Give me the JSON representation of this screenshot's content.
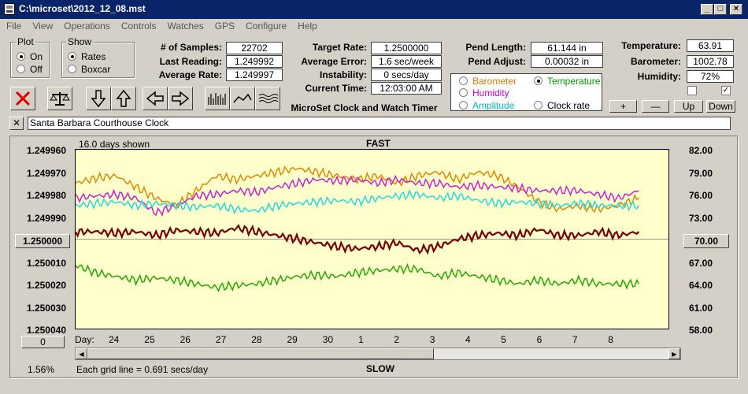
{
  "window": {
    "title": "C:\\microset\\2012_12_08.mst"
  },
  "menu": [
    "File",
    "View",
    "Operations",
    "Controls",
    "Watches",
    "GPS",
    "Configure",
    "Help"
  ],
  "plot_group": {
    "label": "Plot",
    "options": [
      "On",
      "Off"
    ],
    "selected": "On"
  },
  "show_group": {
    "label": "Show",
    "options": [
      "Rates",
      "Boxcar"
    ],
    "selected": "Rates"
  },
  "stats": {
    "samples_label": "# of Samples:",
    "samples_value": "22702",
    "last_label": "Last Reading:",
    "last_value": "1.249992",
    "avg_rate_label": "Average Rate:",
    "avg_rate_value": "1.249997",
    "target_label": "Target Rate:",
    "target_value": "1.2500000",
    "avg_err_label": "Average Error:",
    "avg_err_value": "1.6 sec/week",
    "instab_label": "Instability:",
    "instab_value": "0 secs/day",
    "time_label": "Current Time:",
    "time_value": "12:03:00 AM",
    "app_name": "MicroSet Clock and Watch Timer"
  },
  "pendulum": {
    "length_label": "Pend Length:",
    "length_value": "61.144 in",
    "adjust_label": "Pend Adjust:",
    "adjust_value": "0.00032 in"
  },
  "environment": {
    "temp_label": "Temperature:",
    "temp_value": "63.91",
    "baro_label": "Barometer:",
    "baro_value": "1002.78",
    "hum_label": "Humidity:",
    "hum_value": "72%",
    "chk1": false,
    "chk2": true
  },
  "series_select": {
    "items": [
      {
        "label": "Barometer",
        "color": "#e07800",
        "selected": false
      },
      {
        "label": "Temperature",
        "color": "#009900",
        "selected": true
      },
      {
        "label": "Humidity",
        "color": "#cc00cc",
        "selected": false
      },
      {
        "label": "Clock rate",
        "color": "#000000",
        "selected": false
      },
      {
        "label": "Amplitude",
        "color": "#00bbcc",
        "selected": false
      }
    ]
  },
  "scale_buttons": {
    "plus": "+",
    "minus": "—",
    "up": "Up",
    "down": "Down"
  },
  "watch": {
    "close": "✕",
    "name": "Santa Barbara Courthouse Clock"
  },
  "plot": {
    "days_shown": "16.0 days shown",
    "fast": "FAST",
    "slow": "SLOW",
    "grid_note": "Each grid line = 0.691 secs/day",
    "zoom": "1.56%",
    "center_left": "1.250000",
    "center_right": "70.00",
    "bottom_button": "0",
    "day_label": "Day:"
  },
  "chart_data": {
    "type": "line",
    "x_unit": "day",
    "x_ticks": [
      "24",
      "25",
      "26",
      "27",
      "28",
      "29",
      "30",
      "1",
      "2",
      "3",
      "4",
      "5",
      "6",
      "7",
      "8"
    ],
    "left_axis_ticks": [
      "1.249960",
      "1.249970",
      "1.249980",
      "1.249990",
      "1.250000",
      "1.250010",
      "1.250020",
      "1.250030",
      "1.250040"
    ],
    "right_axis_ticks": [
      "82.00",
      "79.00",
      "76.00",
      "73.00",
      "70.00",
      "67.00",
      "64.00",
      "61.00",
      "58.00"
    ],
    "left_ylim": [
      1.24996,
      1.25004
    ],
    "right_ylim": [
      58,
      82
    ],
    "series": [
      {
        "name": "Barometer",
        "color": "#e08800",
        "axis": "right",
        "values": [
          77.5,
          78.2,
          78.5,
          77.0,
          75.5,
          74.5,
          76.5,
          78.5,
          78.0,
          78.5,
          79.0,
          79.5,
          79.0,
          78.5,
          78.0,
          78.5,
          77.5,
          78.5,
          79.0,
          78.0,
          79.0,
          78.5,
          77.0,
          75.0,
          74.0,
          74.5,
          74.0,
          74.5,
          75.5
        ]
      },
      {
        "name": "Humidity",
        "color": "#cc22cc",
        "axis": "right",
        "values": [
          75.5,
          75.8,
          76.0,
          75.5,
          73.5,
          74.5,
          75.8,
          76.0,
          76.5,
          76.3,
          77.0,
          77.5,
          78.0,
          77.8,
          78.0,
          77.5,
          78.0,
          77.5,
          77.5,
          77.0,
          77.2,
          77.0,
          76.8,
          76.5,
          76.5,
          76.5,
          76.0,
          75.5,
          76.5
        ]
      },
      {
        "name": "Amplitude",
        "color": "#22dddd",
        "axis": "right",
        "values": [
          74.5,
          74.8,
          75.0,
          74.5,
          74.8,
          74.5,
          74.3,
          74.5,
          74.0,
          73.8,
          74.5,
          74.8,
          75.0,
          75.2,
          75.0,
          75.5,
          75.8,
          76.0,
          75.5,
          75.8,
          75.2,
          74.8,
          75.0,
          74.8,
          74.5,
          74.8,
          74.5,
          74.5,
          74.5
        ]
      },
      {
        "name": "Clock rate",
        "color": "#7a0000",
        "axis": "right",
        "values": [
          71.0,
          71.0,
          70.8,
          71.0,
          70.5,
          71.2,
          71.0,
          70.8,
          71.5,
          71.0,
          70.5,
          70.0,
          69.5,
          69.0,
          68.7,
          69.0,
          69.5,
          68.5,
          69.0,
          70.0,
          70.5,
          70.8,
          70.5,
          71.3,
          70.5,
          70.5,
          71.0,
          70.5,
          71.0
        ]
      },
      {
        "name": "Temperature",
        "color": "#22aa00",
        "axis": "right",
        "values": [
          66.5,
          65.5,
          65.0,
          64.5,
          64.8,
          64.5,
          64.0,
          63.5,
          63.8,
          64.0,
          64.5,
          65.0,
          65.2,
          65.0,
          65.5,
          65.8,
          66.0,
          66.0,
          65.0,
          65.5,
          65.0,
          64.5,
          64.0,
          64.5,
          64.0,
          64.5,
          64.0,
          64.0,
          64.0
        ]
      }
    ],
    "grid": true
  }
}
